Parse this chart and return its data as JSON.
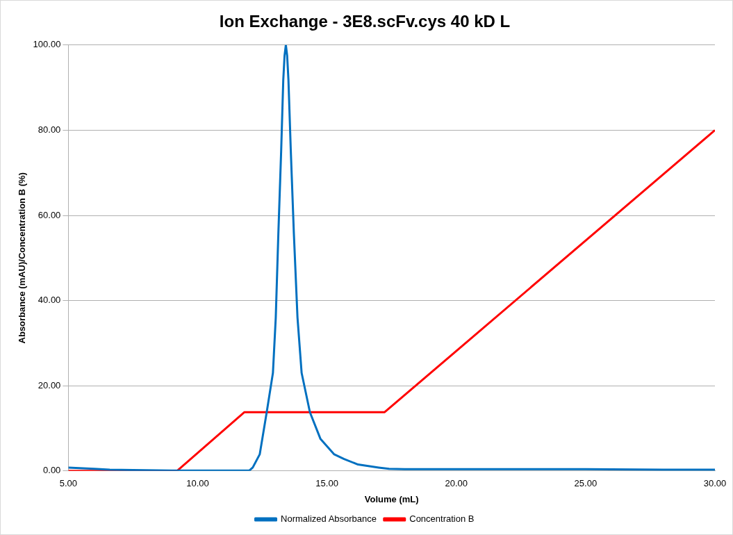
{
  "chart_data": {
    "type": "line",
    "title": "Ion Exchange - 3E8.scFv.cys 40 kD L",
    "xlabel": "Volume (mL)",
    "ylabel": "Absorbance (mAU)/Concentration B (%)",
    "xlim": [
      5,
      30
    ],
    "xticks": [
      {
        "value": 5,
        "label": "5.00"
      },
      {
        "value": 10,
        "label": "10.00"
      },
      {
        "value": 15,
        "label": "15.00"
      },
      {
        "value": 20,
        "label": "20.00"
      },
      {
        "value": 25,
        "label": "25.00"
      },
      {
        "value": 30,
        "label": "30.00"
      }
    ],
    "ylim": [
      0,
      100
    ],
    "yticks": [
      {
        "value": 0,
        "label": "0.00"
      },
      {
        "value": 20,
        "label": "20.00"
      },
      {
        "value": 40,
        "label": "40.00"
      },
      {
        "value": 60,
        "label": "60.00"
      },
      {
        "value": 80,
        "label": "80.00"
      },
      {
        "value": 100,
        "label": "100.00"
      }
    ],
    "grid": "y",
    "legend": "bottom",
    "marker": "none",
    "line_style": "solid",
    "series": [
      {
        "name": "Normalized Absorbance",
        "color": "#0070c0",
        "x": [
          5,
          6,
          6.6,
          7.5,
          9,
          11,
          12,
          12.13,
          12.4,
          12.67,
          12.91,
          13.02,
          13.12,
          13.23,
          13.31,
          13.36,
          13.41,
          13.46,
          13.51,
          13.6,
          13.72,
          13.86,
          14.02,
          14.34,
          14.75,
          15.28,
          15.66,
          16.2,
          17,
          17.4,
          18,
          20,
          22,
          25,
          28,
          30
        ],
        "values": [
          0.8,
          0.5,
          0.3,
          0.2,
          0.1,
          0.1,
          0.1,
          0.8,
          3.9,
          13.8,
          23,
          36,
          55.7,
          75.4,
          91.8,
          97.5,
          100,
          97.5,
          91.8,
          75.4,
          55.7,
          36,
          23,
          13.8,
          7.5,
          3.9,
          2.8,
          1.5,
          0.8,
          0.5,
          0.4,
          0.4,
          0.4,
          0.4,
          0.3,
          0.3
        ]
      },
      {
        "name": "Concentration B",
        "color": "#ff0000",
        "x": [
          5,
          9.2,
          11.81,
          17.23,
          30
        ],
        "values": [
          0,
          0,
          13.8,
          13.8,
          80
        ]
      }
    ]
  }
}
